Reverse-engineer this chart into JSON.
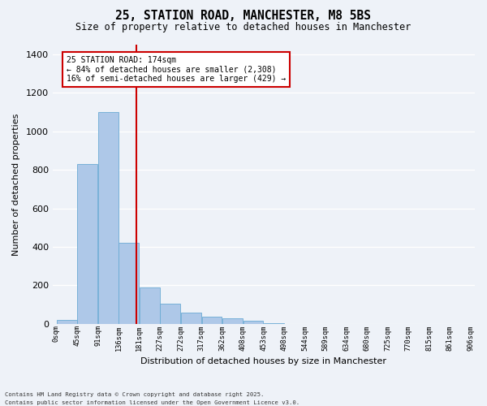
{
  "title1": "25, STATION ROAD, MANCHESTER, M8 5BS",
  "title2": "Size of property relative to detached houses in Manchester",
  "xlabel": "Distribution of detached houses by size in Manchester",
  "ylabel": "Number of detached properties",
  "bar_color": "#aec8e8",
  "bar_edge_color": "#6aaad4",
  "vline_color": "#cc0000",
  "vline_x": 174,
  "bin_width": 45,
  "num_bins": 20,
  "bar_heights": [
    20,
    830,
    1100,
    420,
    190,
    105,
    60,
    38,
    30,
    15,
    5,
    0,
    0,
    0,
    0,
    0,
    0,
    0,
    0,
    0
  ],
  "tick_labels": [
    "0sqm",
    "45sqm",
    "91sqm",
    "136sqm",
    "181sqm",
    "227sqm",
    "272sqm",
    "317sqm",
    "362sqm",
    "408sqm",
    "453sqm",
    "498sqm",
    "544sqm",
    "589sqm",
    "634sqm",
    "680sqm",
    "725sqm",
    "770sqm",
    "815sqm",
    "861sqm",
    "906sqm"
  ],
  "ylim": [
    0,
    1450
  ],
  "annotation_title": "25 STATION ROAD: 174sqm",
  "annotation_line1": "← 84% of detached houses are smaller (2,308)",
  "annotation_line2": "16% of semi-detached houses are larger (429) →",
  "footer1": "Contains HM Land Registry data © Crown copyright and database right 2025.",
  "footer2": "Contains public sector information licensed under the Open Government Licence v3.0.",
  "bg_color": "#eef2f8",
  "grid_color": "#ffffff",
  "box_edge_color": "#cc0000"
}
